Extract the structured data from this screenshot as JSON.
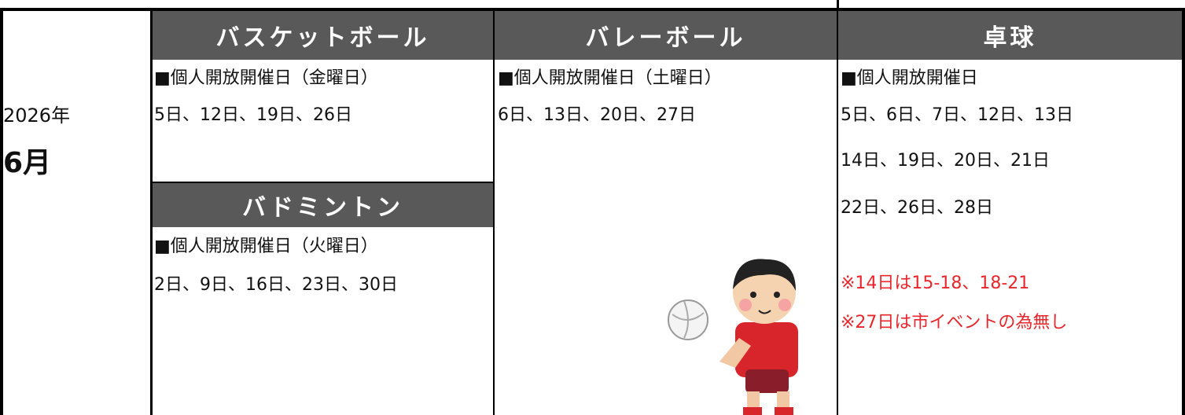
{
  "date": {
    "year": "2026年",
    "month": "6月"
  },
  "basketball": {
    "title": "バスケットボール",
    "lines": [
      "■個人開放開催日（金曜日）",
      "5日、12日、19日、26日"
    ]
  },
  "badminton": {
    "title": "バドミントン",
    "lines": [
      "■個人開放開催日（火曜日）",
      "2日、9日、16日、23日、30日"
    ]
  },
  "volleyball": {
    "title": "バレーボール",
    "lines": [
      "■個人開放開催日（土曜日）",
      "6日、13日、20日、27日"
    ]
  },
  "table_tennis": {
    "title": "卓球",
    "lines": [
      "■個人開放開催日",
      "5日、6日、7日、12日、13日",
      "14日、19日、20日、21日",
      "22日、26日、28日"
    ],
    "notes": [
      "※14日は15-18、18-21",
      "※27日は市イベントの為無し"
    ]
  }
}
